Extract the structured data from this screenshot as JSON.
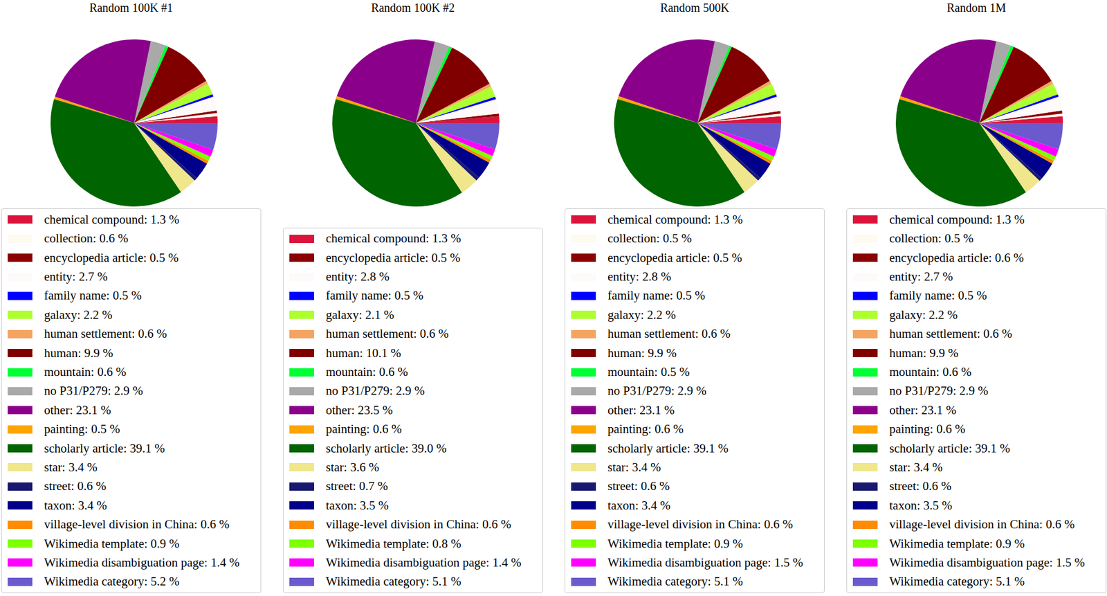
{
  "chart_data": [
    {
      "type": "pie",
      "title": "Random 100K #1",
      "categories": [
        "chemical compound: 1.3 %",
        "collection: 0.6 %",
        "encyclopedia article: 0.5 %",
        "entity: 2.7 %",
        "family name: 0.5 %",
        "galaxy: 2.2 %",
        "human settlement: 0.6 %",
        "human: 9.9 %",
        "mountain: 0.6 %",
        "no P31/P279: 2.9 %",
        "other: 23.1 %",
        "painting: 0.5 %",
        "scholarly article: 39.1 %",
        "star: 3.4 %",
        "street: 0.6 %",
        "taxon: 3.4 %",
        "village-level division in China: 0.6 %",
        "Wikimedia template: 0.9 %",
        "Wikimedia disambiguation page: 1.4 %",
        "Wikimedia category: 5.2 %"
      ],
      "values": [
        1.3,
        0.6,
        0.5,
        2.7,
        0.5,
        2.2,
        0.6,
        9.9,
        0.6,
        2.9,
        23.1,
        0.5,
        39.1,
        3.4,
        0.6,
        3.4,
        0.6,
        0.9,
        1.4,
        5.2
      ],
      "colors": [
        "#dc143c",
        "#fffaf0",
        "#8b0000",
        "#fffafa",
        "#0000ff",
        "#adff2f",
        "#f4a460",
        "#800000",
        "#00ff33",
        "#a9a9a9",
        "#8b008b",
        "#ffa500",
        "#006400",
        "#f0e68c",
        "#191970",
        "#00008b",
        "#ff8c00",
        "#7fff00",
        "#ff00ff",
        "#6a5acd"
      ]
    },
    {
      "type": "pie",
      "title": "Random 100K #2",
      "categories": [
        "chemical compound: 1.3 %",
        "encyclopedia article: 0.5 %",
        "entity: 2.8 %",
        "family name: 0.5 %",
        "galaxy: 2.1 %",
        "human settlement: 0.6 %",
        "human: 10.1 %",
        "mountain: 0.6 %",
        "no P31/P279: 2.9 %",
        "other: 23.5 %",
        "painting: 0.6 %",
        "scholarly article: 39.0 %",
        "star: 3.6 %",
        "street: 0.7 %",
        "taxon: 3.5 %",
        "village-level division in China: 0.6 %",
        "Wikimedia template: 0.8 %",
        "Wikimedia disambiguation page: 1.4 %",
        "Wikimedia category: 5.1 %"
      ],
      "values": [
        1.3,
        0.5,
        2.8,
        0.5,
        2.1,
        0.6,
        10.1,
        0.6,
        2.9,
        23.5,
        0.6,
        39.0,
        3.6,
        0.7,
        3.5,
        0.6,
        0.8,
        1.4,
        5.1
      ],
      "colors": [
        "#dc143c",
        "#8b0000",
        "#fffafa",
        "#0000ff",
        "#adff2f",
        "#f4a460",
        "#800000",
        "#00ff33",
        "#a9a9a9",
        "#8b008b",
        "#ffa500",
        "#006400",
        "#f0e68c",
        "#191970",
        "#00008b",
        "#ff8c00",
        "#7fff00",
        "#ff00ff",
        "#6a5acd"
      ]
    },
    {
      "type": "pie",
      "title": "Random 500K",
      "categories": [
        "chemical compound: 1.3 %",
        "collection: 0.5 %",
        "encyclopedia article: 0.5 %",
        "entity: 2.8 %",
        "family name: 0.5 %",
        "galaxy: 2.2 %",
        "human settlement: 0.6 %",
        "human: 9.9 %",
        "mountain: 0.5 %",
        "no P31/P279: 2.9 %",
        "other: 23.1 %",
        "painting: 0.6 %",
        "scholarly article: 39.1 %",
        "star: 3.4 %",
        "street: 0.6 %",
        "taxon: 3.4 %",
        "village-level division in China: 0.6 %",
        "Wikimedia template: 0.9 %",
        "Wikimedia disambiguation page: 1.5 %",
        "Wikimedia category: 5.1 %"
      ],
      "values": [
        1.3,
        0.5,
        0.5,
        2.8,
        0.5,
        2.2,
        0.6,
        9.9,
        0.5,
        2.9,
        23.1,
        0.6,
        39.1,
        3.4,
        0.6,
        3.4,
        0.6,
        0.9,
        1.5,
        5.1
      ],
      "colors": [
        "#dc143c",
        "#fffaf0",
        "#8b0000",
        "#fffafa",
        "#0000ff",
        "#adff2f",
        "#f4a460",
        "#800000",
        "#00ff33",
        "#a9a9a9",
        "#8b008b",
        "#ffa500",
        "#006400",
        "#f0e68c",
        "#191970",
        "#00008b",
        "#ff8c00",
        "#7fff00",
        "#ff00ff",
        "#6a5acd"
      ]
    },
    {
      "type": "pie",
      "title": "Random 1M",
      "categories": [
        "chemical compound: 1.3 %",
        "collection: 0.5 %",
        "encyclopedia article: 0.6 %",
        "entity: 2.7 %",
        "family name: 0.5 %",
        "galaxy: 2.2 %",
        "human settlement: 0.6 %",
        "human: 9.9 %",
        "mountain: 0.6 %",
        "no P31/P279: 2.9 %",
        "other: 23.1 %",
        "painting: 0.6 %",
        "scholarly article: 39.1 %",
        "star: 3.4 %",
        "street: 0.6 %",
        "taxon: 3.5 %",
        "village-level division in China: 0.6 %",
        "Wikimedia template: 0.9 %",
        "Wikimedia disambiguation page: 1.5 %",
        "Wikimedia category: 5.1 %"
      ],
      "values": [
        1.3,
        0.5,
        0.6,
        2.7,
        0.5,
        2.2,
        0.6,
        9.9,
        0.6,
        2.9,
        23.1,
        0.6,
        39.1,
        3.4,
        0.6,
        3.5,
        0.6,
        0.9,
        1.5,
        5.1
      ],
      "colors": [
        "#dc143c",
        "#fffaf0",
        "#8b0000",
        "#fffafa",
        "#0000ff",
        "#adff2f",
        "#f4a460",
        "#800000",
        "#00ff33",
        "#a9a9a9",
        "#8b008b",
        "#ffa500",
        "#006400",
        "#f0e68c",
        "#191970",
        "#00008b",
        "#ff8c00",
        "#7fff00",
        "#ff00ff",
        "#6a5acd"
      ]
    }
  ]
}
